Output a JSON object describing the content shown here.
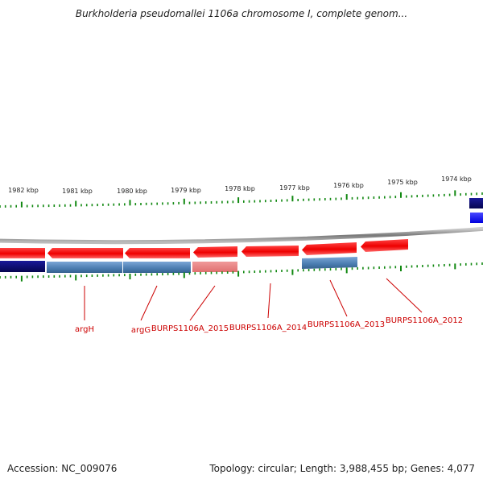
{
  "title": "Burkholderia pseudomallei 1106a chromosome I, complete genom...",
  "footer": {
    "accession": "Accession: NC_009076",
    "summary": "Topology: circular; Length: 3,988,455 bp; Genes: 4,077"
  },
  "ruler": {
    "labels": [
      "1982 kbp",
      "1981 kbp",
      "1980 kbp",
      "1979 kbp",
      "1978 kbp",
      "1977 kbp",
      "1976 kbp",
      "1975 kbp",
      "1974 kbp"
    ]
  },
  "gene_labels": [
    "argH",
    "argG",
    "BURPS1106A_2015",
    "BURPS1106A_2014",
    "BURPS1106A_2013",
    "BURPS1106A_2012"
  ],
  "colors": {
    "backbone": "#888888",
    "ticks": "#118811",
    "gene": "#ee1111",
    "gene_pseudo": "#ee8888",
    "cds_dark": "#0a0a78",
    "cds_steel": "#4a7cb0",
    "cds_blue": "#1a1aff",
    "label": "#cc0000"
  }
}
